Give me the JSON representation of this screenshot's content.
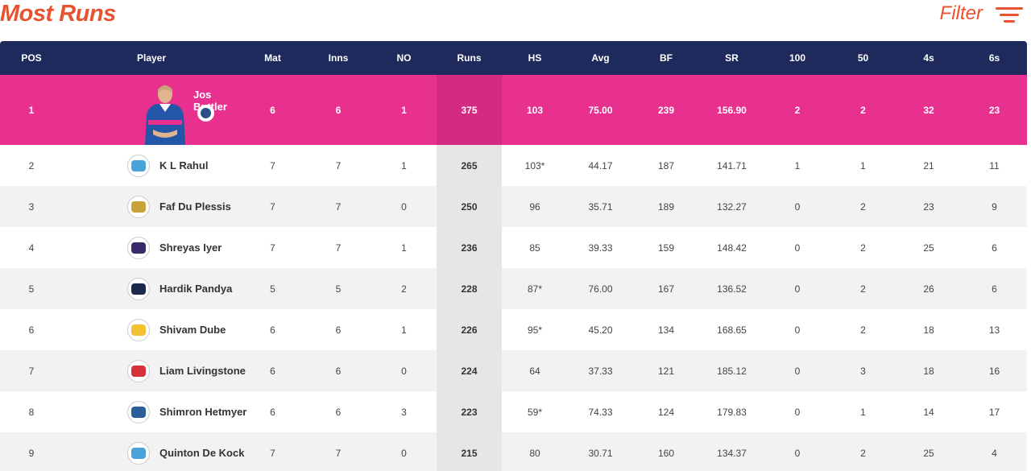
{
  "header": {
    "title": "Most Runs",
    "filter_label": "Filter"
  },
  "columns": [
    "POS",
    "Player",
    "Mat",
    "Inns",
    "NO",
    "Runs",
    "HS",
    "Avg",
    "BF",
    "SR",
    "100",
    "50",
    "4s",
    "6s"
  ],
  "leader": {
    "pos": "1",
    "player": "Jos Buttler",
    "mat": "6",
    "inns": "6",
    "no": "1",
    "runs": "375",
    "hs": "103",
    "avg": "75.00",
    "bf": "239",
    "sr": "156.90",
    "hundreds": "2",
    "fifties": "2",
    "fours": "32",
    "sixes": "23",
    "team_color": "#2a4f8a"
  },
  "rows": [
    {
      "pos": "2",
      "player": "K L Rahul",
      "mat": "7",
      "inns": "7",
      "no": "1",
      "runs": "265",
      "hs": "103*",
      "avg": "44.17",
      "bf": "187",
      "sr": "141.71",
      "hundreds": "1",
      "fifties": "1",
      "fours": "21",
      "sixes": "11",
      "team_color": "#4aa3d8"
    },
    {
      "pos": "3",
      "player": "Faf Du Plessis",
      "mat": "7",
      "inns": "7",
      "no": "0",
      "runs": "250",
      "hs": "96",
      "avg": "35.71",
      "bf": "189",
      "sr": "132.27",
      "hundreds": "0",
      "fifties": "2",
      "fours": "23",
      "sixes": "9",
      "team_color": "#c8a23a"
    },
    {
      "pos": "4",
      "player": "Shreyas Iyer",
      "mat": "7",
      "inns": "7",
      "no": "1",
      "runs": "236",
      "hs": "85",
      "avg": "39.33",
      "bf": "159",
      "sr": "148.42",
      "hundreds": "0",
      "fifties": "2",
      "fours": "25",
      "sixes": "6",
      "team_color": "#3a2a6a"
    },
    {
      "pos": "5",
      "player": "Hardik Pandya",
      "mat": "5",
      "inns": "5",
      "no": "2",
      "runs": "228",
      "hs": "87*",
      "avg": "76.00",
      "bf": "167",
      "sr": "136.52",
      "hundreds": "0",
      "fifties": "2",
      "fours": "26",
      "sixes": "6",
      "team_color": "#1b2a4a"
    },
    {
      "pos": "6",
      "player": "Shivam Dube",
      "mat": "6",
      "inns": "6",
      "no": "1",
      "runs": "226",
      "hs": "95*",
      "avg": "45.20",
      "bf": "134",
      "sr": "168.65",
      "hundreds": "0",
      "fifties": "2",
      "fours": "18",
      "sixes": "13",
      "team_color": "#f2c230"
    },
    {
      "pos": "7",
      "player": "Liam Livingstone",
      "mat": "6",
      "inns": "6",
      "no": "0",
      "runs": "224",
      "hs": "64",
      "avg": "37.33",
      "bf": "121",
      "sr": "185.12",
      "hundreds": "0",
      "fifties": "3",
      "fours": "18",
      "sixes": "16",
      "team_color": "#d6303a"
    },
    {
      "pos": "8",
      "player": "Shimron Hetmyer",
      "mat": "6",
      "inns": "6",
      "no": "3",
      "runs": "223",
      "hs": "59*",
      "avg": "74.33",
      "bf": "124",
      "sr": "179.83",
      "hundreds": "0",
      "fifties": "1",
      "fours": "14",
      "sixes": "17",
      "team_color": "#2a5f9a"
    },
    {
      "pos": "9",
      "player": "Quinton De Kock",
      "mat": "7",
      "inns": "7",
      "no": "0",
      "runs": "215",
      "hs": "80",
      "avg": "30.71",
      "bf": "160",
      "sr": "134.37",
      "hundreds": "0",
      "fifties": "2",
      "fours": "25",
      "sixes": "4",
      "team_color": "#4aa3d8"
    }
  ]
}
